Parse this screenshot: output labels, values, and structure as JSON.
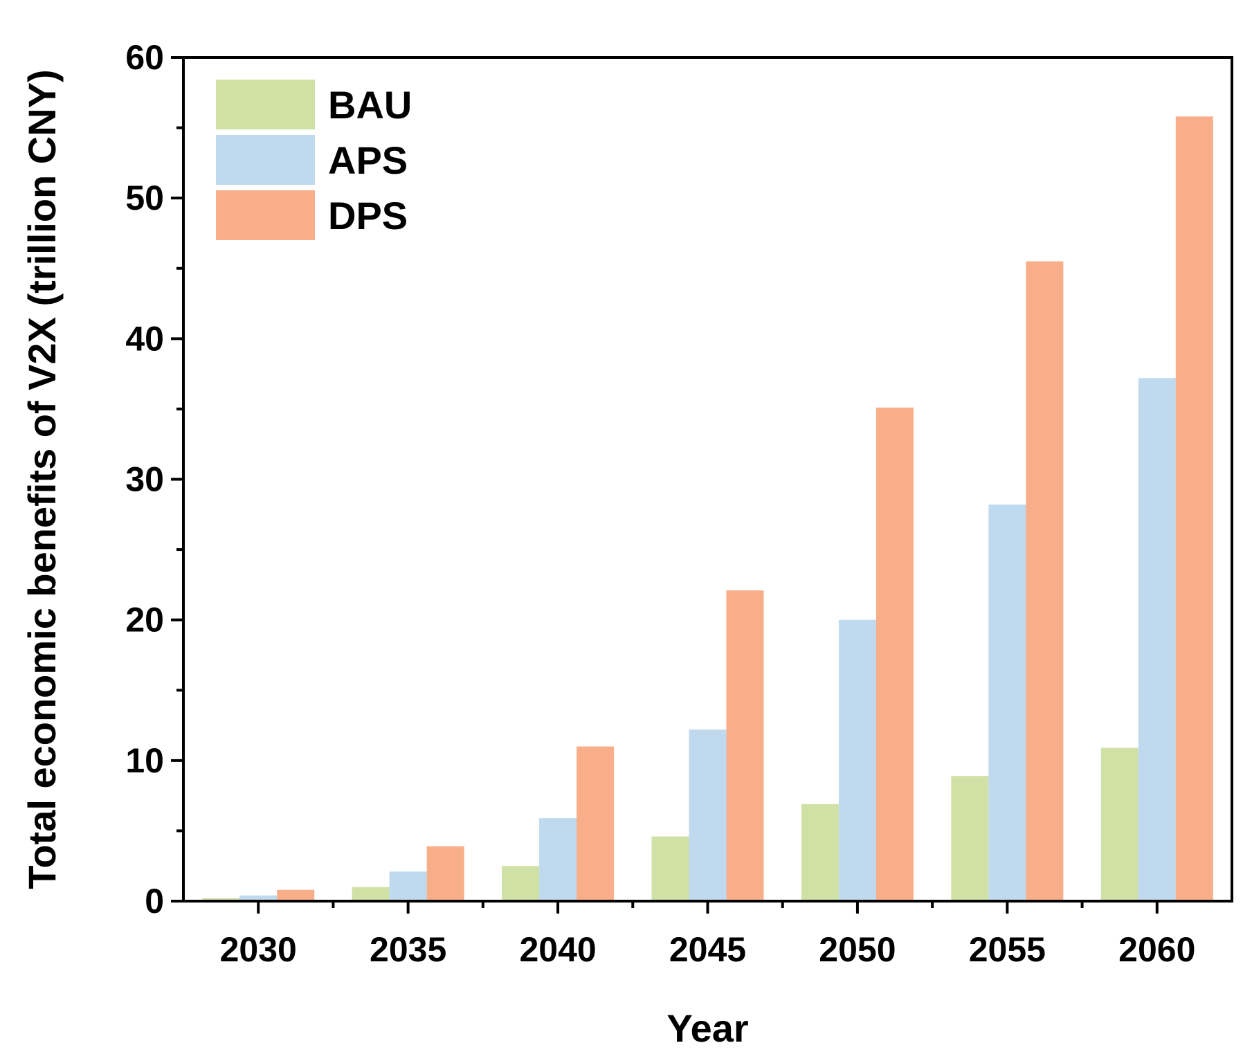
{
  "chart_data": {
    "type": "bar",
    "xlabel": "Year",
    "ylabel": "Total economic benefits of V2X (trillion CNY)",
    "categories": [
      "2030",
      "2035",
      "2040",
      "2045",
      "2050",
      "2055",
      "2060"
    ],
    "series": [
      {
        "name": "BAU",
        "color": "#cfe1a4",
        "values": [
          0.2,
          1.0,
          2.5,
          4.6,
          6.9,
          8.9,
          10.9
        ]
      },
      {
        "name": "APS",
        "color": "#bfd9ee",
        "values": [
          0.4,
          2.1,
          5.9,
          12.2,
          20.0,
          28.2,
          37.2
        ]
      },
      {
        "name": "DPS",
        "color": "#f8ae88",
        "values": [
          0.8,
          3.9,
          11.0,
          22.1,
          35.1,
          45.5,
          55.8
        ]
      }
    ],
    "ylim": [
      0,
      60
    ],
    "yticks": [
      0,
      10,
      20,
      30,
      40,
      50,
      60
    ],
    "legend_position": "top-left",
    "grid": false
  }
}
